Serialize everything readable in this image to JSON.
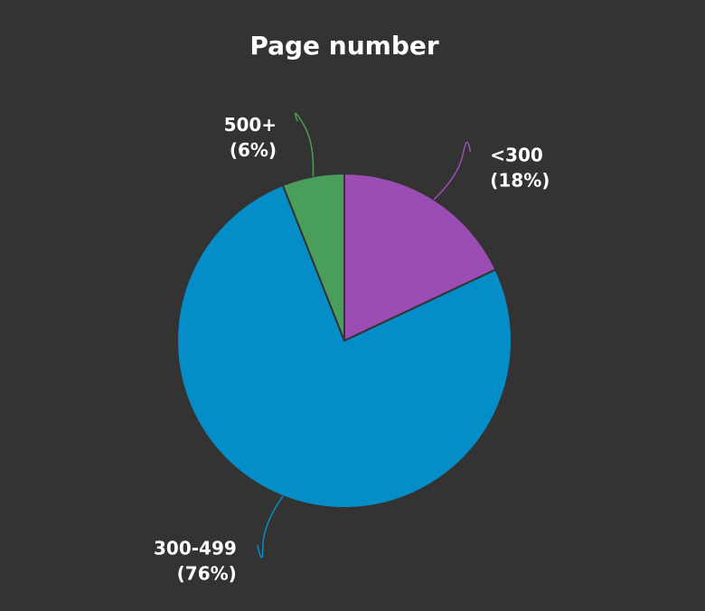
{
  "chart_data": {
    "type": "pie",
    "title": "Page number",
    "categories": [
      "<300",
      "300-499",
      "500+"
    ],
    "values": [
      18,
      76,
      6
    ],
    "value_labels": [
      "(18%)",
      "(76%)",
      "(6%)"
    ],
    "colors": [
      "#9b4db3",
      "#058dc7",
      "#4a9e5c"
    ]
  }
}
